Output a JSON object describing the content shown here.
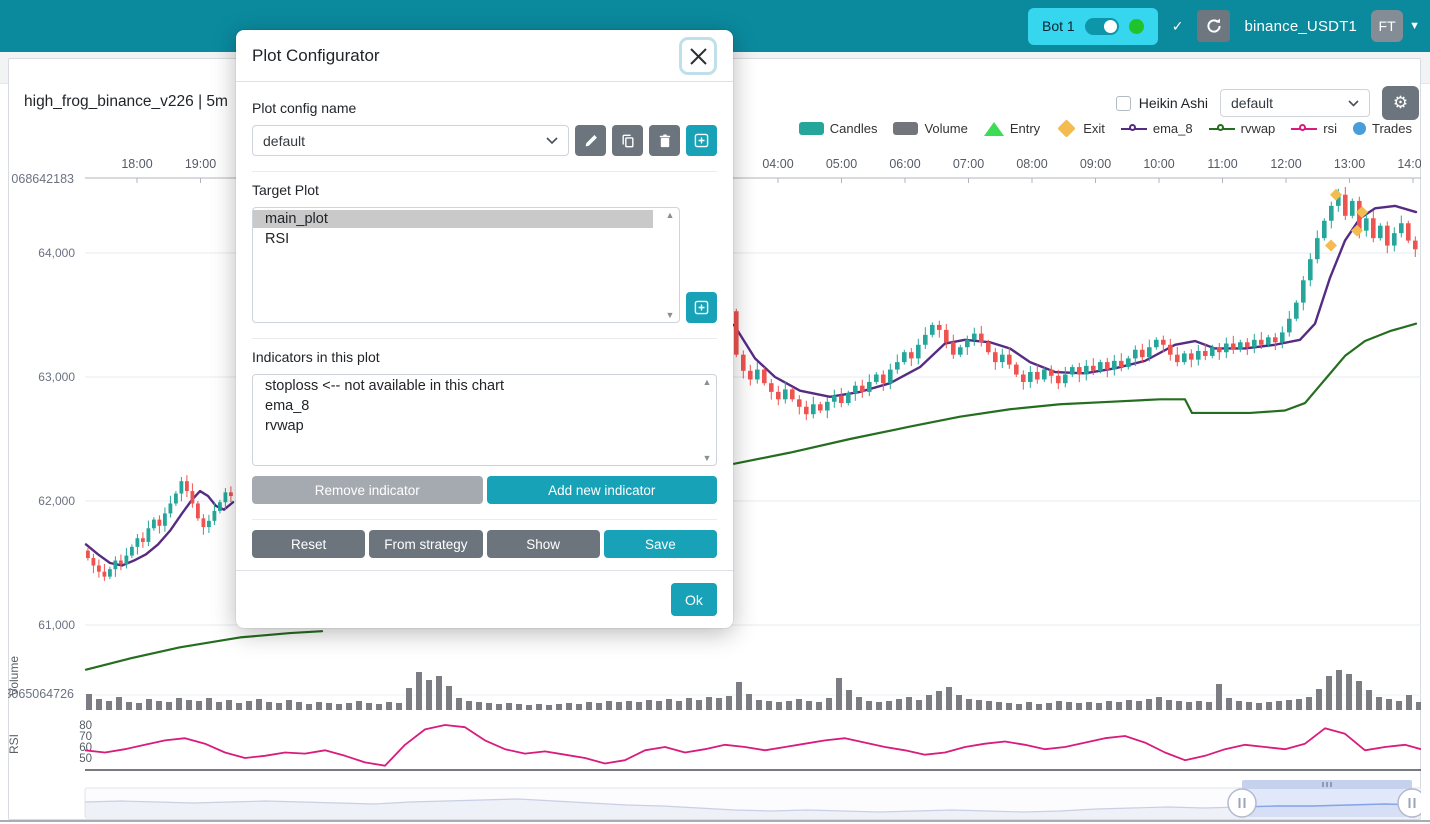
{
  "navbar": {
    "bot_label": "Bot 1",
    "check_icon": "✓",
    "refresh_icon": "refresh-icon",
    "pair": "binance_USDT1",
    "avatar": "FT"
  },
  "chart_header": {
    "title": "high_frog_binance_v226 | 5m",
    "heikin_ashi_label": "Heikin Ashi",
    "preset_value": "default",
    "gear_icon": "⚙"
  },
  "legend": [
    {
      "label": "Candles",
      "type": "rect",
      "color": "#26A69A"
    },
    {
      "label": "Volume",
      "type": "rect",
      "color": "#73757d"
    },
    {
      "label": "Entry",
      "type": "triangle",
      "color": "#3ddc55"
    },
    {
      "label": "Exit",
      "type": "diamond",
      "color": "#f3bb50"
    },
    {
      "label": "ema_8",
      "type": "line",
      "color": "#562b83"
    },
    {
      "label": "rvwap",
      "type": "line",
      "color": "#256e1f"
    },
    {
      "label": "rsi",
      "type": "line",
      "color": "#d81b7c"
    },
    {
      "label": "Trades",
      "type": "circle",
      "color": "#4a9ddb"
    }
  ],
  "modal": {
    "title": "Plot Configurator",
    "config_name_label": "Plot config name",
    "config_value": "default",
    "target_plot_label": "Target Plot",
    "target_items": [
      "main_plot",
      "RSI"
    ],
    "selected_target": "main_plot",
    "indicators_label": "Indicators in this plot",
    "indicator_items": [
      "stoploss <-- not available in this chart",
      "ema_8",
      "rvwap"
    ],
    "buttons": {
      "remove": "Remove indicator",
      "add": "Add new indicator",
      "reset": "Reset",
      "from_strategy": "From strategy",
      "show": "Show",
      "save": "Save",
      "ok": "Ok"
    }
  },
  "chart_data": {
    "type": "candlestick+volume+rsi",
    "colors": {
      "up": "#26A69A",
      "down": "#EF5350",
      "ema": "#562b83",
      "rvwap": "#256e1f",
      "rsi": "#d81b7c",
      "volume": "#7b7d82",
      "exit_marker": "#f3bb50",
      "grid": "#e9ebf2",
      "axis": "#b0b4bc",
      "tick_text": "#6b7280"
    },
    "price_axis": {
      "overflow_label": "068642183",
      "ticks": [
        {
          "label": "64,000",
          "value": 64000
        },
        {
          "label": "63,000",
          "value": 63000
        },
        {
          "label": "62,000",
          "value": 62000
        },
        {
          "label": "61,000",
          "value": 61000
        }
      ]
    },
    "time_axis": {
      "left": [
        "18:00",
        "19:00"
      ],
      "right": [
        "04:00",
        "05:00",
        "06:00",
        "07:00",
        "08:00",
        "09:00",
        "10:00",
        "11:00",
        "12:00",
        "13:00",
        "14:00"
      ]
    },
    "volume_pane": {
      "axis_title": "Volume",
      "tick_label": "3065064726",
      "bars": [
        16,
        11,
        9,
        13,
        8,
        7,
        11,
        9,
        8,
        12,
        10,
        9,
        12,
        8,
        10,
        7,
        9,
        11,
        8,
        7,
        10,
        8,
        6,
        8,
        7,
        6,
        7,
        9,
        7,
        6,
        8,
        7,
        22,
        38,
        30,
        34,
        24,
        12,
        9,
        8,
        7,
        6,
        7,
        6,
        5,
        6,
        5,
        6,
        7,
        6,
        8,
        7,
        9,
        8,
        9,
        8,
        10,
        9,
        11,
        9,
        12,
        10,
        13,
        12,
        14,
        28,
        16,
        10,
        9,
        8,
        9,
        11,
        9,
        8,
        12,
        32,
        20,
        13,
        9,
        8,
        9,
        11,
        13,
        10,
        15,
        19,
        23,
        15,
        11,
        10,
        9,
        8,
        7,
        6,
        8,
        6,
        7,
        9,
        8,
        7,
        8,
        7,
        9,
        8,
        10,
        9,
        11,
        13,
        10,
        9,
        8,
        9,
        8,
        26,
        12,
        9,
        8,
        7,
        8,
        9,
        10,
        11,
        13,
        21,
        34,
        40,
        36,
        29,
        20,
        13,
        11,
        9,
        15,
        8
      ]
    },
    "rsi_pane": {
      "axis_title": "RSI",
      "ticks": [
        80,
        70,
        60,
        50
      ],
      "values": [
        57,
        55,
        58,
        62,
        66,
        68,
        63,
        55,
        50,
        52,
        55,
        54,
        57,
        52,
        46,
        43,
        62,
        76,
        80,
        78,
        66,
        58,
        54,
        56,
        53,
        50,
        45,
        48,
        57,
        60,
        55,
        58,
        62,
        60,
        57,
        60,
        63,
        66,
        68,
        64,
        60,
        57,
        53,
        55,
        60,
        63,
        65,
        62,
        58,
        60,
        64,
        68,
        70,
        64,
        55,
        48,
        52,
        58,
        62,
        60,
        58,
        63,
        77,
        72,
        57,
        60,
        62,
        58
      ]
    },
    "candles_left": {
      "first_open": 61600,
      "closes": [
        61540,
        61480,
        61430,
        61390,
        61450,
        61520,
        61490,
        61560,
        61630,
        61700,
        61670,
        61780,
        61850,
        61800,
        61900,
        61980,
        62060,
        62160,
        62080,
        61980,
        61860,
        61790,
        61840,
        61920,
        61990,
        62070,
        62040
      ]
    },
    "candles_right": {
      "first_open": 63530,
      "closes": [
        63180,
        63050,
        62980,
        63060,
        62950,
        62880,
        62820,
        62900,
        62820,
        62760,
        62700,
        62780,
        62730,
        62800,
        62850,
        62790,
        62870,
        62930,
        62880,
        62960,
        63020,
        62950,
        63060,
        63120,
        63200,
        63150,
        63260,
        63340,
        63420,
        63380,
        63280,
        63180,
        63240,
        63300,
        63350,
        63280,
        63200,
        63120,
        63180,
        63100,
        63020,
        62960,
        63040,
        62980,
        63060,
        63010,
        62950,
        63020,
        63080,
        63020,
        63090,
        63050,
        63120,
        63060,
        63130,
        63080,
        63150,
        63220,
        63160,
        63240,
        63300,
        63260,
        63180,
        63120,
        63190,
        63140,
        63210,
        63170,
        63240,
        63200,
        63270,
        63220,
        63280,
        63240,
        63300,
        63260,
        63320,
        63280,
        63360,
        63470,
        63600,
        63780,
        63950,
        64120,
        64260,
        64380,
        64470,
        64300,
        64420,
        64180,
        64280,
        64120,
        64220,
        64060,
        64160,
        64240,
        64100,
        64030
      ]
    },
    "ema_left": [
      [
        86,
        61650
      ],
      [
        98,
        61570
      ],
      [
        110,
        61500
      ],
      [
        122,
        61480
      ],
      [
        134,
        61520
      ],
      [
        146,
        61570
      ],
      [
        158,
        61650
      ],
      [
        170,
        61760
      ],
      [
        182,
        61900
      ],
      [
        192,
        62010
      ],
      [
        200,
        62080
      ],
      [
        208,
        62040
      ],
      [
        216,
        61960
      ],
      [
        224,
        61930
      ],
      [
        233,
        61990
      ]
    ],
    "ema_right": [
      [
        734,
        63420
      ],
      [
        755,
        63150
      ],
      [
        775,
        63000
      ],
      [
        800,
        62890
      ],
      [
        830,
        62840
      ],
      [
        860,
        62880
      ],
      [
        890,
        62950
      ],
      [
        920,
        63080
      ],
      [
        945,
        63270
      ],
      [
        965,
        63300
      ],
      [
        990,
        63280
      ],
      [
        1010,
        63230
      ],
      [
        1030,
        63120
      ],
      [
        1055,
        63040
      ],
      [
        1085,
        63030
      ],
      [
        1115,
        63070
      ],
      [
        1145,
        63130
      ],
      [
        1175,
        63260
      ],
      [
        1195,
        63290
      ],
      [
        1215,
        63230
      ],
      [
        1245,
        63230
      ],
      [
        1275,
        63260
      ],
      [
        1300,
        63300
      ],
      [
        1315,
        63430
      ],
      [
        1330,
        63800
      ],
      [
        1345,
        64100
      ],
      [
        1360,
        64280
      ],
      [
        1375,
        64360
      ],
      [
        1395,
        64380
      ],
      [
        1416,
        64330
      ]
    ],
    "rvwap_left": [
      [
        86,
        60640
      ],
      [
        130,
        60730
      ],
      [
        180,
        60820
      ],
      [
        240,
        60900
      ],
      [
        290,
        60935
      ],
      [
        322,
        60950
      ]
    ],
    "rvwap_right": [
      [
        734,
        62300
      ],
      [
        790,
        62390
      ],
      [
        850,
        62500
      ],
      [
        910,
        62600
      ],
      [
        960,
        62680
      ],
      [
        1010,
        62740
      ],
      [
        1060,
        62780
      ],
      [
        1110,
        62800
      ],
      [
        1160,
        62820
      ],
      [
        1185,
        62820
      ],
      [
        1192,
        62710
      ],
      [
        1250,
        62710
      ],
      [
        1285,
        62730
      ],
      [
        1305,
        62790
      ],
      [
        1325,
        62980
      ],
      [
        1345,
        63170
      ],
      [
        1365,
        63290
      ],
      [
        1390,
        63370
      ],
      [
        1416,
        63430
      ]
    ],
    "exit_markers": [
      [
        1336,
        64470
      ],
      [
        1331,
        64060
      ],
      [
        1362,
        64330
      ],
      [
        1357,
        64180
      ]
    ],
    "navigator": {
      "line": [
        12,
        11,
        12,
        13,
        12,
        11,
        12,
        13,
        14,
        12,
        11,
        10,
        9,
        11,
        13,
        15,
        16,
        18,
        20,
        21,
        20,
        21,
        22,
        21,
        20,
        21,
        22,
        21,
        19,
        18,
        17,
        18,
        17,
        16,
        16,
        15,
        14,
        15
      ],
      "selection": [
        1242,
        1412
      ]
    }
  }
}
